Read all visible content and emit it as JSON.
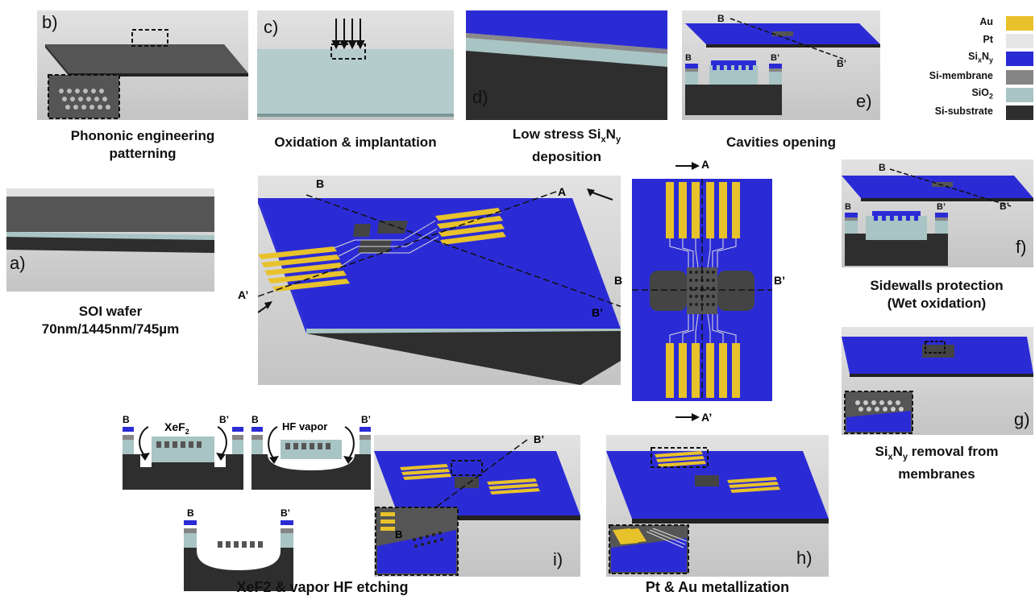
{
  "panels": {
    "a": {
      "label": "a)",
      "caption1": "SOI wafer",
      "caption2": "70nm/1445nm/745µm"
    },
    "b": {
      "label": "b)",
      "caption1": "Phononic engineering",
      "caption2": "patterning"
    },
    "c": {
      "label": "c)",
      "caption1": "Oxidation & implantation"
    },
    "d": {
      "label": "d)",
      "caption_pre": "Low stress Si",
      "caption_sub1": "x",
      "caption_mid": "N",
      "caption_sub2": "y",
      "caption2": "deposition"
    },
    "e": {
      "label": "e)",
      "caption1": "Cavities opening"
    },
    "f": {
      "label": "f)",
      "caption1": "Sidewalls protection",
      "caption2": "(Wet oxidation)"
    },
    "g": {
      "label": "g)",
      "caption_pre": "Si",
      "caption_sub1": "x",
      "caption_mid": "N",
      "caption_sub2": "y",
      "caption_post": " removal from",
      "caption2": "membranes"
    },
    "h": {
      "label": "h)",
      "caption1": "Pt & Au metallization"
    },
    "i": {
      "label": "i)",
      "caption1": "XeF2 & vapor HF etching"
    }
  },
  "section_marks": {
    "A": "A",
    "A_prime": "A’",
    "B": "B",
    "B_prime": "B’"
  },
  "etch_labels": {
    "xef2_pre": "XeF",
    "xef2_sub": "2",
    "hf_vapor": "HF vapor"
  },
  "legend": [
    {
      "name": "Au",
      "color": "#e8c22a"
    },
    {
      "name": "Pt",
      "color": "#e6e6e6"
    },
    {
      "name": "SixNy",
      "pre": "Si",
      "sub1": "x",
      "mid": "N",
      "sub2": "y",
      "color": "#2b2bd6"
    },
    {
      "name": "Si-membrane",
      "color": "#858585"
    },
    {
      "name": "SiO2",
      "pre": "SiO",
      "sub1": "2",
      "color": "#a8c4c4"
    },
    {
      "name": "Si-substrate",
      "color": "#2e2e2e"
    }
  ],
  "colors": {
    "au": "#e8c22a",
    "pt": "#e6e6e6",
    "sixny": "#2b2bd6",
    "membrane": "#858585",
    "sio2": "#a8c4c4",
    "substrate": "#2e2e2e",
    "panel_bg": "#d5d5d5"
  }
}
